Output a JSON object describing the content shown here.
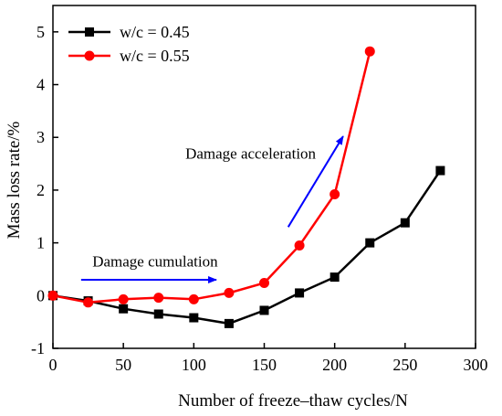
{
  "chart_data": {
    "type": "line",
    "title": "",
    "xlabel": "Number of freeze–thaw cycles/N",
    "ylabel": "Mass loss rate/%",
    "xlim": [
      0,
      300
    ],
    "ylim": [
      -1,
      5.5
    ],
    "x_ticks": [
      0,
      50,
      100,
      150,
      200,
      250,
      300
    ],
    "y_ticks": [
      -1,
      0,
      1,
      2,
      3,
      4,
      5
    ],
    "x_tick_labels": [
      "0",
      "50",
      "100",
      "150",
      "200",
      "250",
      "300"
    ],
    "y_tick_labels": [
      "-1",
      "0",
      "1",
      "2",
      "3",
      "4",
      "5"
    ],
    "grid": false,
    "legend_position": "top-left",
    "series": [
      {
        "name": "w/c = 0.45",
        "color": "#000000",
        "marker": "square",
        "x": [
          0,
          25,
          50,
          75,
          100,
          125,
          150,
          175,
          200,
          225,
          250,
          275
        ],
        "y": [
          0,
          -0.1,
          -0.25,
          -0.35,
          -0.42,
          -0.53,
          -0.28,
          0.05,
          0.35,
          1.0,
          1.38,
          2.37
        ]
      },
      {
        "name": "w/c = 0.55",
        "color": "#ff0000",
        "marker": "circle",
        "x": [
          0,
          25,
          50,
          75,
          100,
          125,
          150,
          175,
          200,
          225
        ],
        "y": [
          0,
          -0.13,
          -0.07,
          -0.04,
          -0.07,
          0.05,
          0.24,
          0.95,
          1.92,
          4.63
        ]
      }
    ],
    "annotations": [
      {
        "text": "Damage cumulation",
        "color": "#0000ff",
        "label_at": [
          28,
          0.55
        ],
        "arrow_from": [
          20,
          0.3
        ],
        "arrow_to": [
          116,
          0.3
        ]
      },
      {
        "text": "Damage acceleration",
        "color": "#0000ff",
        "label_at": [
          94,
          2.6
        ],
        "arrow_from": [
          167,
          1.3
        ],
        "arrow_to": [
          206,
          3.02
        ]
      }
    ]
  }
}
